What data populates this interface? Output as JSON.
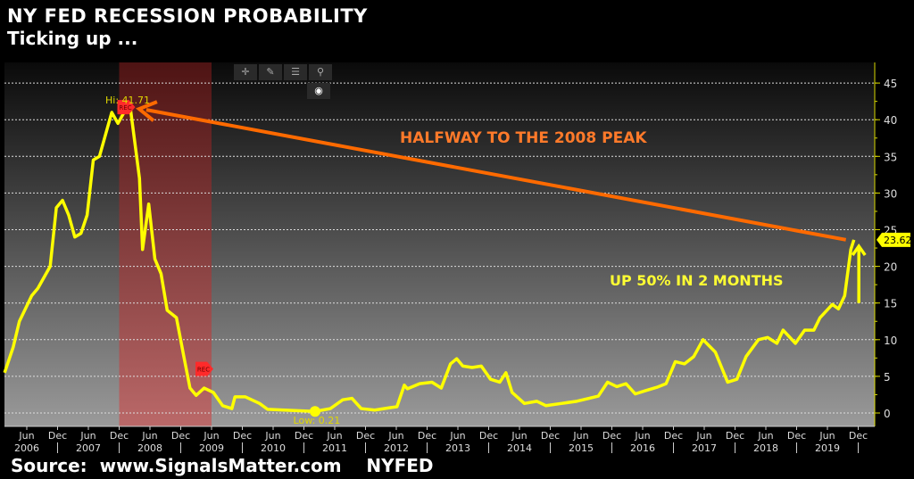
{
  "header": {
    "title": "NY FED RECESSION PROBABILITY",
    "subtitle": "Ticking up ..."
  },
  "footer": {
    "source": "Source:  www.SignalsMatter.com    NYFED"
  },
  "toolbar": [
    {
      "icon": "crosshair-icon",
      "glyph": "✛"
    },
    {
      "icon": "pen-icon",
      "glyph": "✎"
    },
    {
      "icon": "legend-icon",
      "glyph": "☰"
    },
    {
      "icon": "zoom-icon",
      "glyph": "⚲"
    }
  ],
  "colors": {
    "line": "#ffff00",
    "arrow": "#ff6a00",
    "recession": "#b03030",
    "up_text": "#ffff33",
    "halfway_text": "#ff7a2a",
    "axis": "#d8d800"
  },
  "chart_data": {
    "type": "line",
    "title": "NY FED RECESSION PROBABILITY",
    "ylim": [
      0,
      47
    ],
    "yticks": [
      0,
      5,
      10,
      15,
      20,
      25,
      30,
      35,
      40,
      45
    ],
    "y_axis_side": "right",
    "grid": "horizontal dotted",
    "xticks": [
      {
        "x": 2006.42,
        "m": "Jun",
        "y": "2006"
      },
      {
        "x": 2006.92,
        "m": "Dec",
        "y": ""
      },
      {
        "x": 2007.42,
        "m": "Jun",
        "y": "2007"
      },
      {
        "x": 2007.92,
        "m": "Dec",
        "y": ""
      },
      {
        "x": 2008.42,
        "m": "Jun",
        "y": "2008"
      },
      {
        "x": 2008.92,
        "m": "Dec",
        "y": ""
      },
      {
        "x": 2009.42,
        "m": "Jun",
        "y": "2009"
      },
      {
        "x": 2009.92,
        "m": "Dec",
        "y": ""
      },
      {
        "x": 2010.42,
        "m": "Jun",
        "y": "2010"
      },
      {
        "x": 2010.92,
        "m": "Dec",
        "y": ""
      },
      {
        "x": 2011.42,
        "m": "Jun",
        "y": "2011"
      },
      {
        "x": 2011.92,
        "m": "Dec",
        "y": ""
      },
      {
        "x": 2012.42,
        "m": "Jun",
        "y": "2012"
      },
      {
        "x": 2012.92,
        "m": "Dec",
        "y": ""
      },
      {
        "x": 2013.42,
        "m": "Jun",
        "y": "2013"
      },
      {
        "x": 2013.92,
        "m": "Dec",
        "y": ""
      },
      {
        "x": 2014.42,
        "m": "Jun",
        "y": "2014"
      },
      {
        "x": 2014.92,
        "m": "Dec",
        "y": ""
      },
      {
        "x": 2015.42,
        "m": "Jun",
        "y": "2015"
      },
      {
        "x": 2015.92,
        "m": "Dec",
        "y": ""
      },
      {
        "x": 2016.42,
        "m": "Jun",
        "y": "2016"
      },
      {
        "x": 2016.92,
        "m": "Dec",
        "y": ""
      },
      {
        "x": 2017.42,
        "m": "Jun",
        "y": "2017"
      },
      {
        "x": 2017.92,
        "m": "Dec",
        "y": ""
      },
      {
        "x": 2018.42,
        "m": "Jun",
        "y": "2018"
      },
      {
        "x": 2018.92,
        "m": "Dec",
        "y": ""
      },
      {
        "x": 2019.42,
        "m": "Jun",
        "y": "2019"
      },
      {
        "x": 2019.92,
        "m": "Dec",
        "y": ""
      }
    ],
    "recession": {
      "start": 2007.92,
      "end": 2009.42,
      "marker": "REC"
    },
    "series": [
      {
        "x": [
          2006.06,
          2006.2,
          2006.3,
          2006.5,
          2006.6,
          2006.8,
          2006.9,
          2007.0,
          2007.1,
          2007.2,
          2007.3,
          2007.4,
          2007.5,
          2007.6,
          2007.8,
          2007.9,
          2008.0,
          2008.1,
          2008.25,
          2008.3,
          2008.4,
          2008.5,
          2008.6,
          2008.7,
          2008.85,
          2008.97,
          2009.07,
          2009.17,
          2009.3,
          2009.45,
          2009.6,
          2009.75,
          2009.8,
          2009.97,
          2010.2,
          2010.33,
          2010.6,
          2011.1,
          2011.35,
          2011.55,
          2011.7,
          2011.85,
          2012.07,
          2012.3,
          2012.43,
          2012.55,
          2012.6,
          2012.8,
          2013.0,
          2013.15,
          2013.3,
          2013.4,
          2013.5,
          2013.65,
          2013.8,
          2013.95,
          2014.1,
          2014.2,
          2014.3,
          2014.5,
          2014.7,
          2014.85,
          2015.1,
          2015.35,
          2015.55,
          2015.7,
          2015.85,
          2016.0,
          2016.15,
          2016.3,
          2016.45,
          2016.65,
          2016.8,
          2016.95,
          2017.1,
          2017.25,
          2017.4,
          2017.6,
          2017.8,
          2017.95,
          2018.1,
          2018.3,
          2018.45,
          2018.6,
          2018.7,
          2018.9,
          2019.05,
          2019.2,
          2019.3,
          2019.5,
          2019.6,
          2019.7,
          2019.8,
          2019.85
        ],
        "values": [
          5.5,
          9,
          12.5,
          16,
          17,
          20,
          28,
          29,
          27,
          24,
          24.5,
          27,
          34.5,
          35,
          41,
          39.5,
          41,
          41.71,
          32,
          22.3,
          28.5,
          21,
          19,
          14,
          13,
          7.7,
          3.4,
          2.4,
          3.4,
          2.8,
          1,
          0.6,
          2.2,
          2.2,
          1.3,
          0.5,
          0.4,
          0.21,
          0.6,
          1.8,
          2,
          0.6,
          0.4,
          0.7,
          0.85,
          3.8,
          3.3,
          4,
          4.2,
          3.4,
          6.7,
          7.4,
          6.4,
          6.2,
          6.4,
          4.6,
          4.2,
          5.5,
          2.8,
          1.3,
          1.6,
          1,
          1.3,
          1.6,
          2,
          2.3,
          4.2,
          3.6,
          4,
          2.6,
          3,
          3.5,
          4,
          7,
          6.7,
          7.7,
          10,
          8.3,
          4.2,
          4.6,
          7.7,
          10,
          10.3,
          9.5,
          11.3,
          9.5,
          11.3,
          11.3,
          13,
          14.8,
          14.2,
          16,
          22.3,
          23.62
        ]
      }
    ],
    "annotations": {
      "high_label": "Hi: 41.71",
      "high": {
        "x": 2008.1,
        "y": 41.71
      },
      "low_label": "Low: 0.21",
      "low": {
        "x": 2011.1,
        "y": 0.21
      },
      "last_value": "23.62",
      "halfway_text": "HALFWAY TO THE 2008 PEAK",
      "up_text": "UP 50% IN 2 MONTHS",
      "arrow_from": {
        "x": 2019.72,
        "y": 23.62
      },
      "arrow_to": {
        "x": 2008.1,
        "y": 41.71
      },
      "up_arrow": {
        "x": 2019.93,
        "from": 15,
        "to": 22.5
      }
    }
  }
}
